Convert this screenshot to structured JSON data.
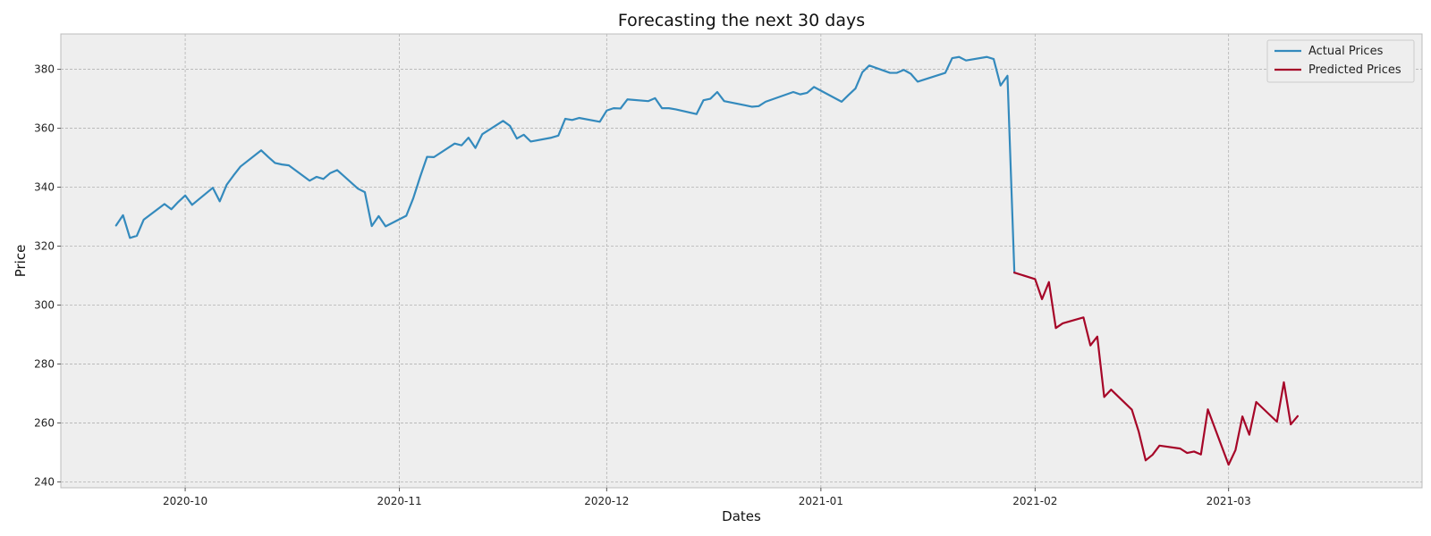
{
  "chart_data": {
    "type": "line",
    "title": "Forecasting the next 30 days",
    "xlabel": "Dates",
    "ylabel": "Price",
    "ylim": [
      238,
      392
    ],
    "xlim": [
      "2020-09-13",
      "2021-03-29"
    ],
    "x_ticks": [
      "2020-10",
      "2020-11",
      "2020-12",
      "2021-01",
      "2021-02",
      "2021-03"
    ],
    "y_ticks": [
      240,
      260,
      280,
      300,
      320,
      340,
      360,
      380
    ],
    "grid": true,
    "legend_position": "top-right",
    "series": [
      {
        "name": "Actual Prices",
        "color": "#348abd",
        "points": [
          [
            "2020-09-21",
            327
          ],
          [
            "2020-09-22",
            330.5
          ],
          [
            "2020-09-23",
            322.8
          ],
          [
            "2020-09-24",
            323.5
          ],
          [
            "2020-09-25",
            329
          ],
          [
            "2020-09-28",
            334.3
          ],
          [
            "2020-09-29",
            332.5
          ],
          [
            "2020-09-30",
            335
          ],
          [
            "2020-10-01",
            337.2
          ],
          [
            "2020-10-02",
            334
          ],
          [
            "2020-10-05",
            339.8
          ],
          [
            "2020-10-06",
            335.2
          ],
          [
            "2020-10-07",
            340.8
          ],
          [
            "2020-10-08",
            344
          ],
          [
            "2020-10-09",
            347
          ],
          [
            "2020-10-12",
            352.5
          ],
          [
            "2020-10-13",
            350.3
          ],
          [
            "2020-10-14",
            348.2
          ],
          [
            "2020-10-15",
            347.7
          ],
          [
            "2020-10-16",
            347.4
          ],
          [
            "2020-10-19",
            342.2
          ],
          [
            "2020-10-20",
            343.5
          ],
          [
            "2020-10-21",
            342.8
          ],
          [
            "2020-10-22",
            344.8
          ],
          [
            "2020-10-23",
            345.8
          ],
          [
            "2020-10-26",
            339.5
          ],
          [
            "2020-10-27",
            338.3
          ],
          [
            "2020-10-28",
            326.8
          ],
          [
            "2020-10-29",
            330.2
          ],
          [
            "2020-10-30",
            326.7
          ],
          [
            "2020-11-02",
            330.3
          ],
          [
            "2020-11-03",
            336.2
          ],
          [
            "2020-11-04",
            343.5
          ],
          [
            "2020-11-05",
            350.3
          ],
          [
            "2020-11-06",
            350.2
          ],
          [
            "2020-11-09",
            354.8
          ],
          [
            "2020-11-10",
            354.2
          ],
          [
            "2020-11-11",
            356.8
          ],
          [
            "2020-11-12",
            353.3
          ],
          [
            "2020-11-13",
            358
          ],
          [
            "2020-11-16",
            362.5
          ],
          [
            "2020-11-17",
            360.8
          ],
          [
            "2020-11-18",
            356.5
          ],
          [
            "2020-11-19",
            357.8
          ],
          [
            "2020-11-20",
            355.5
          ],
          [
            "2020-11-23",
            356.8
          ],
          [
            "2020-11-24",
            357.5
          ],
          [
            "2020-11-25",
            363.2
          ],
          [
            "2020-11-26",
            362.8
          ],
          [
            "2020-11-27",
            363.5
          ],
          [
            "2020-11-30",
            362.2
          ],
          [
            "2020-12-01",
            366
          ],
          [
            "2020-12-02",
            366.8
          ],
          [
            "2020-12-03",
            366.7
          ],
          [
            "2020-12-04",
            369.8
          ],
          [
            "2020-12-07",
            369.2
          ],
          [
            "2020-12-08",
            370.2
          ],
          [
            "2020-12-09",
            366.8
          ],
          [
            "2020-12-10",
            366.8
          ],
          [
            "2020-12-11",
            366.4
          ],
          [
            "2020-12-14",
            364.8
          ],
          [
            "2020-12-15",
            369.5
          ],
          [
            "2020-12-16",
            370
          ],
          [
            "2020-12-17",
            372.3
          ],
          [
            "2020-12-18",
            369.2
          ],
          [
            "2020-12-21",
            367.8
          ],
          [
            "2020-12-22",
            367.3
          ],
          [
            "2020-12-23",
            367.5
          ],
          [
            "2020-12-24",
            369
          ],
          [
            "2020-12-28",
            372.3
          ],
          [
            "2020-12-29",
            371.5
          ],
          [
            "2020-12-30",
            372
          ],
          [
            "2020-12-31",
            374
          ],
          [
            "2021-01-04",
            369
          ],
          [
            "2021-01-05",
            371.3
          ],
          [
            "2021-01-06",
            373.5
          ],
          [
            "2021-01-07",
            379
          ],
          [
            "2021-01-08",
            381.3
          ],
          [
            "2021-01-11",
            378.8
          ],
          [
            "2021-01-12",
            378.8
          ],
          [
            "2021-01-13",
            379.8
          ],
          [
            "2021-01-14",
            378.5
          ],
          [
            "2021-01-15",
            375.8
          ],
          [
            "2021-01-19",
            378.8
          ],
          [
            "2021-01-20",
            383.8
          ],
          [
            "2021-01-21",
            384.2
          ],
          [
            "2021-01-22",
            383
          ],
          [
            "2021-01-25",
            384.2
          ],
          [
            "2021-01-26",
            383.5
          ],
          [
            "2021-01-27",
            374.5
          ],
          [
            "2021-01-28",
            377.8
          ],
          [
            "2021-01-29",
            311
          ]
        ]
      },
      {
        "name": "Predicted Prices",
        "color": "#a60628",
        "points": [
          [
            "2021-01-29",
            311
          ],
          [
            "2021-02-01",
            308.8
          ],
          [
            "2021-02-02",
            302
          ],
          [
            "2021-02-03",
            307.8
          ],
          [
            "2021-02-04",
            292.2
          ],
          [
            "2021-02-05",
            293.8
          ],
          [
            "2021-02-08",
            295.8
          ],
          [
            "2021-02-09",
            286.3
          ],
          [
            "2021-02-10",
            289.3
          ],
          [
            "2021-02-11",
            268.8
          ],
          [
            "2021-02-12",
            271.3
          ],
          [
            "2021-02-15",
            264.5
          ],
          [
            "2021-02-16",
            257
          ],
          [
            "2021-02-17",
            247.3
          ],
          [
            "2021-02-18",
            249.2
          ],
          [
            "2021-02-19",
            252.3
          ],
          [
            "2021-02-22",
            251.3
          ],
          [
            "2021-02-23",
            249.8
          ],
          [
            "2021-02-24",
            250.3
          ],
          [
            "2021-02-25",
            249.3
          ],
          [
            "2021-02-26",
            264.6
          ],
          [
            "2021-03-01",
            245.8
          ],
          [
            "2021-03-02",
            250.8
          ],
          [
            "2021-03-03",
            262.2
          ],
          [
            "2021-03-04",
            256
          ],
          [
            "2021-03-05",
            267.1
          ],
          [
            "2021-03-08",
            260.4
          ],
          [
            "2021-03-09",
            273.8
          ],
          [
            "2021-03-10",
            259.5
          ],
          [
            "2021-03-11",
            262.3
          ]
        ]
      }
    ]
  }
}
